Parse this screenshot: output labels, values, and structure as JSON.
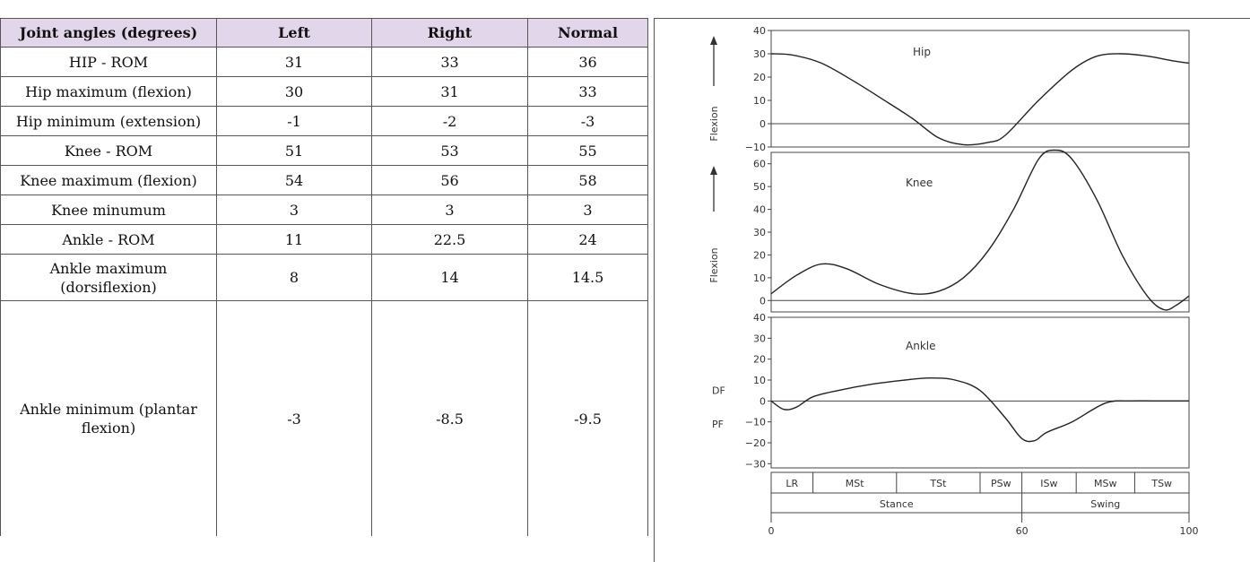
{
  "table": {
    "headers": [
      "Joint angles (degrees)",
      "Left",
      "Right",
      "Normal"
    ],
    "rows": [
      [
        "HIP - ROM",
        "31",
        "33",
        "36"
      ],
      [
        "Hip maximum (flexion)",
        "30",
        "31",
        "33"
      ],
      [
        "Hip minimum (extension)",
        "-1",
        "-2",
        "-3"
      ],
      [
        "Knee - ROM",
        "51",
        "53",
        "55"
      ],
      [
        "Knee maximum (flexion)",
        "54",
        "56",
        "58"
      ],
      [
        "Knee minumum",
        "3",
        "3",
        "3"
      ],
      [
        "Ankle - ROM",
        "11",
        "22.5",
        "24"
      ],
      [
        "Ankle maximum (dorsiflexion)",
        "8",
        "14",
        "14.5"
      ],
      [
        "Ankle minimum (plantar flexion)",
        "-3",
        "-8.5",
        "-9.5"
      ]
    ]
  },
  "chart_data": [
    {
      "type": "line",
      "title": "Hip",
      "ylabel": "Flexion",
      "ylim": [
        -10,
        40
      ],
      "yticks": [
        "40",
        "30",
        "20",
        "10",
        "0",
        "−10"
      ],
      "xlim": [
        0,
        100
      ],
      "x": [
        0,
        5,
        12,
        20,
        28,
        34,
        40,
        46,
        52,
        56,
        64,
        72,
        78,
        84,
        90,
        96,
        100
      ],
      "y": [
        30,
        29.5,
        26,
        18,
        9,
        2,
        -6,
        -9,
        -8,
        -5,
        10,
        23,
        29,
        30,
        29,
        27,
        26
      ]
    },
    {
      "type": "line",
      "title": "Knee",
      "ylabel": "Flexion",
      "ylim": [
        -5,
        70
      ],
      "yticks": [
        "60",
        "50",
        "40",
        "30",
        "20",
        "10",
        "0"
      ],
      "xlim": [
        0,
        100
      ],
      "x": [
        0,
        6,
        12,
        18,
        26,
        34,
        40,
        46,
        52,
        58,
        64,
        68,
        72,
        78,
        84,
        90,
        94,
        97,
        100
      ],
      "y": [
        3,
        11,
        16,
        14,
        7,
        3,
        4,
        10,
        22,
        40,
        62,
        66,
        62,
        44,
        20,
        2,
        -4,
        -2,
        2
      ]
    },
    {
      "type": "line",
      "title": "Ankle",
      "ylabel": "",
      "ylim": [
        -30,
        40
      ],
      "yticks": [
        "40",
        "30",
        "20",
        "10",
        "0",
        "−10",
        "−20",
        "−30"
      ],
      "axis_tags": [
        "DF",
        "PF"
      ],
      "xlim": [
        0,
        100
      ],
      "x": [
        0,
        3,
        6,
        10,
        16,
        24,
        32,
        38,
        44,
        50,
        56,
        60,
        63,
        66,
        72,
        80,
        86,
        92,
        100
      ],
      "y": [
        0,
        -4,
        -3,
        2,
        5,
        8,
        10,
        11,
        10,
        5,
        -8,
        -18,
        -19,
        -15,
        -10,
        -1,
        0,
        0,
        0
      ],
      "phases": [
        {
          "label": "LR",
          "from": 0,
          "to": 10
        },
        {
          "label": "MSt",
          "from": 10,
          "to": 30
        },
        {
          "label": "TSt",
          "from": 30,
          "to": 50
        },
        {
          "label": "PSw",
          "from": 50,
          "to": 60
        },
        {
          "label": "ISw",
          "from": 60,
          "to": 73
        },
        {
          "label": "MSw",
          "from": 73,
          "to": 87
        },
        {
          "label": "TSw",
          "from": 87,
          "to": 100
        }
      ],
      "periods": [
        {
          "label": "Stance",
          "from": 0,
          "to": 60
        },
        {
          "label": "Swing",
          "from": 60,
          "to": 100
        }
      ],
      "xticks": [
        "0",
        "60",
        "100"
      ],
      "xtick_values": [
        0,
        60,
        100
      ]
    }
  ]
}
